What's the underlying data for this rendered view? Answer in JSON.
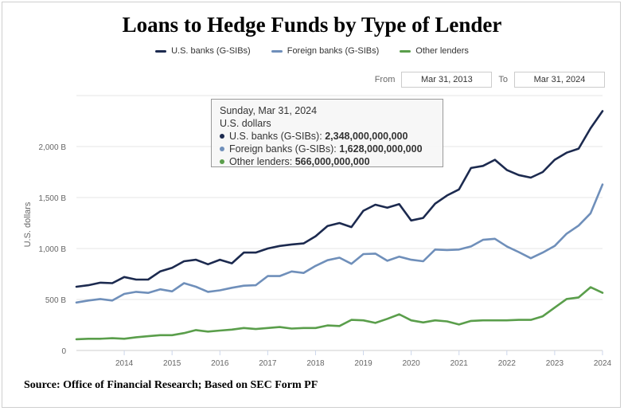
{
  "title": "Loans to Hedge Funds by Type of Lender",
  "legend": [
    {
      "label": "U.S. banks (G-SIBs)",
      "color": "#1c2a4f"
    },
    {
      "label": "Foreign banks (G-SIBs)",
      "color": "#6f8fba"
    },
    {
      "label": "Other lenders",
      "color": "#5a9e4b"
    }
  ],
  "range": {
    "from_label": "From",
    "from_value": "Mar 31, 2013",
    "to_label": "To",
    "to_value": "Mar 31, 2024"
  },
  "tooltip": {
    "date": "Sunday, Mar 31, 2024",
    "unit": "U.S. dollars",
    "rows": [
      {
        "label": "U.S. banks (G-SIBs):",
        "value": "2,348,000,000,000",
        "color": "#1c2a4f"
      },
      {
        "label": "Foreign banks (G-SIBs):",
        "value": "1,628,000,000,000",
        "color": "#6f8fba"
      },
      {
        "label": "Other lenders:",
        "value": "566,000,000,000",
        "color": "#5a9e4b"
      }
    ]
  },
  "source": "Source: Office of Financial Research; Based on SEC Form PF",
  "chart_data": {
    "type": "line",
    "ylabel": "U.S. dollars",
    "ylim": [
      0,
      2500
    ],
    "yticks": [
      0,
      500,
      1000,
      1500,
      2000
    ],
    "ytick_labels": [
      "0",
      "500 B",
      "1,000 B",
      "1,500 B",
      "2,000 B"
    ],
    "xticks": [
      "2014",
      "2015",
      "2016",
      "2017",
      "2018",
      "2019",
      "2020",
      "2021",
      "2022",
      "2023",
      "2024"
    ],
    "x": [
      "2013-Q1",
      "2013-Q2",
      "2013-Q3",
      "2013-Q4",
      "2014-Q1",
      "2014-Q2",
      "2014-Q3",
      "2014-Q4",
      "2015-Q1",
      "2015-Q2",
      "2015-Q3",
      "2015-Q4",
      "2016-Q1",
      "2016-Q2",
      "2016-Q3",
      "2016-Q4",
      "2017-Q1",
      "2017-Q2",
      "2017-Q3",
      "2017-Q4",
      "2018-Q1",
      "2018-Q2",
      "2018-Q3",
      "2018-Q4",
      "2019-Q1",
      "2019-Q2",
      "2019-Q3",
      "2019-Q4",
      "2020-Q1",
      "2020-Q2",
      "2020-Q3",
      "2020-Q4",
      "2021-Q1",
      "2021-Q2",
      "2021-Q3",
      "2021-Q4",
      "2022-Q1",
      "2022-Q2",
      "2022-Q3",
      "2022-Q4",
      "2023-Q1",
      "2023-Q2",
      "2023-Q3",
      "2023-Q4",
      "2024-Q1"
    ],
    "series": [
      {
        "name": "U.S. banks (G-SIBs)",
        "color": "#1c2a4f",
        "values": [
          625,
          640,
          665,
          660,
          720,
          695,
          695,
          775,
          810,
          875,
          890,
          845,
          890,
          855,
          960,
          960,
          1000,
          1025,
          1040,
          1050,
          1120,
          1220,
          1250,
          1210,
          1370,
          1430,
          1400,
          1435,
          1275,
          1300,
          1440,
          1520,
          1580,
          1790,
          1810,
          1870,
          1770,
          1720,
          1695,
          1750,
          1870,
          1940,
          1980,
          2180,
          2348
        ]
      },
      {
        "name": "Foreign banks (G-SIBs)",
        "color": "#6f8fba",
        "values": [
          470,
          490,
          505,
          490,
          555,
          575,
          565,
          600,
          580,
          660,
          625,
          575,
          590,
          615,
          635,
          640,
          730,
          730,
          775,
          760,
          830,
          885,
          910,
          850,
          945,
          950,
          880,
          920,
          890,
          875,
          990,
          985,
          990,
          1020,
          1085,
          1095,
          1020,
          965,
          905,
          960,
          1025,
          1145,
          1225,
          1345,
          1628
        ]
      },
      {
        "name": "Other lenders",
        "color": "#5a9e4b",
        "values": [
          110,
          115,
          115,
          120,
          115,
          130,
          140,
          150,
          150,
          170,
          200,
          185,
          195,
          205,
          220,
          210,
          220,
          230,
          215,
          220,
          220,
          245,
          240,
          300,
          295,
          270,
          310,
          355,
          295,
          275,
          295,
          285,
          255,
          290,
          295,
          295,
          295,
          300,
          300,
          335,
          420,
          505,
          520,
          620,
          566
        ]
      }
    ]
  }
}
